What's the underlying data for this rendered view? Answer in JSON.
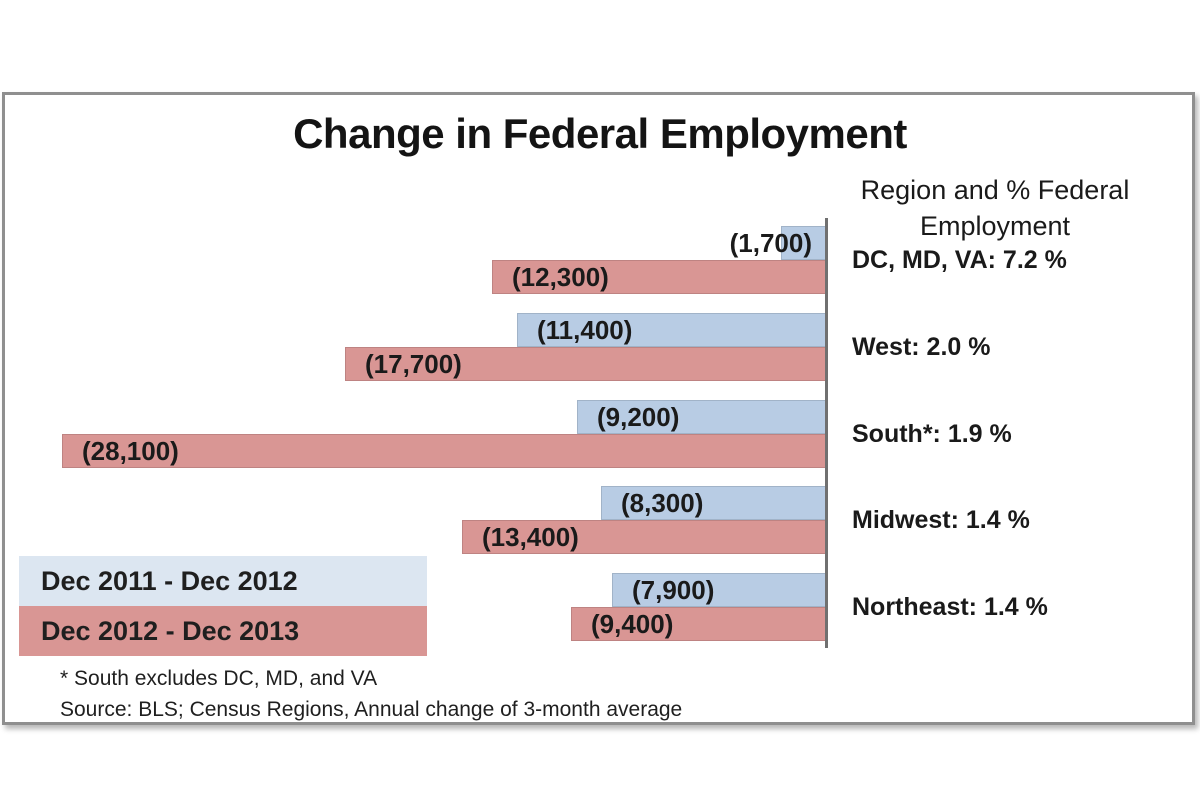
{
  "chart_data": {
    "type": "bar",
    "orientation": "horizontal",
    "title": "Change in Federal Employment",
    "categories": [
      "DC, MD, VA",
      "West",
      "South*",
      "Midwest",
      "Northeast"
    ],
    "category_axis_labels": [
      "DC, MD, VA: 7.2 %",
      "West: 2.0 %",
      "South*: 1.9 %",
      "Midwest: 1.4 %",
      "Northeast: 1.4 %"
    ],
    "series": [
      {
        "name": "Dec 2011 - Dec 2012",
        "color": "#b8cce4",
        "values": [
          -1700,
          -11400,
          -9200,
          -8300,
          -7900
        ],
        "data_labels": [
          "(1,700)",
          "(11,400)",
          "(9,200)",
          "(8,300)",
          "(7,900)"
        ]
      },
      {
        "name": "Dec 2012 - Dec 2013",
        "color": "#d99694",
        "values": [
          -12300,
          -17700,
          -28100,
          -13400,
          -9400
        ],
        "data_labels": [
          "(12,300)",
          "(17,700)",
          "(28,100)",
          "(13,400)",
          "(9,400)"
        ]
      }
    ],
    "xlim": [
      -28100,
      0
    ],
    "value_axis_side": "right",
    "grid": false,
    "legend_position": "bottom-left"
  },
  "right_header": {
    "line1": "Region and % Federal",
    "line2": "Employment"
  },
  "legend": {
    "items": [
      {
        "label": "Dec 2011 - Dec 2012",
        "swatch_color": "#dce6f1"
      },
      {
        "label": "Dec 2012 - Dec 2013",
        "swatch_color": "#d99694"
      }
    ]
  },
  "footnotes": {
    "line1": "* South excludes DC, MD, and VA",
    "line2": "Source: BLS; Census Regions, Annual change of 3-month average"
  },
  "colors": {
    "series_2011_2012_bar": "#b8cce4",
    "series_2012_2013_bar": "#d99694",
    "legend_2011_2012_swatch": "#dce6f1",
    "axis_line": "#707070",
    "frame_border": "#8f8f8f",
    "text": "#1a1a1a"
  }
}
